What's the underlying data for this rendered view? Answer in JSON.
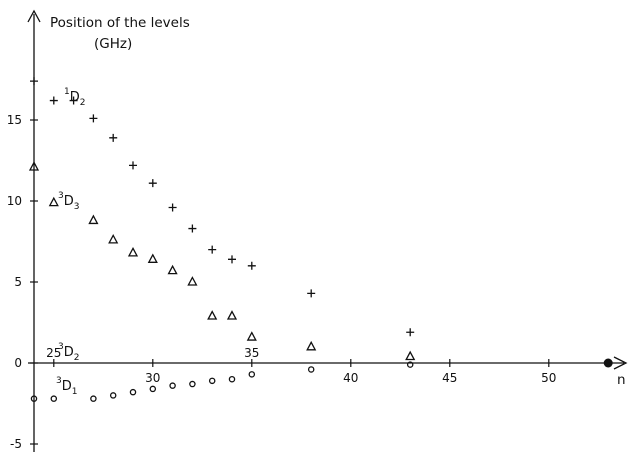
{
  "chart_data": {
    "type": "scatter",
    "title": "Position of the levels",
    "ylabel": "(GHz)",
    "xlabel": "n",
    "xlim": [
      24,
      54
    ],
    "ylim": [
      -6.5,
      19
    ],
    "x_ticks": [
      25,
      30,
      35,
      40,
      45,
      50
    ],
    "y_ticks": [
      -5,
      0,
      5,
      10,
      15
    ],
    "x_axis_end_marker": 53,
    "series": [
      {
        "label_pre": "1",
        "label_main": "D",
        "label_post": "2",
        "marker": "plus",
        "points": [
          [
            24,
            17.4
          ],
          [
            25,
            16.2
          ],
          [
            26,
            16.2
          ],
          [
            27,
            15.1
          ],
          [
            28,
            13.9
          ],
          [
            29,
            12.2
          ],
          [
            30,
            11.1
          ],
          [
            31,
            9.6
          ],
          [
            32,
            8.3
          ],
          [
            33,
            7.0
          ],
          [
            34,
            6.4
          ],
          [
            35,
            6.0
          ],
          [
            38,
            4.3
          ],
          [
            43,
            1.9
          ]
        ]
      },
      {
        "label_pre": "3",
        "label_main": "D",
        "label_post": "3",
        "marker": "triangle",
        "points": [
          [
            24,
            12.1
          ],
          [
            25,
            9.9
          ],
          [
            27,
            8.8
          ],
          [
            28,
            7.6
          ],
          [
            29,
            6.8
          ],
          [
            30,
            6.4
          ],
          [
            31,
            5.7
          ],
          [
            32,
            5.0
          ],
          [
            33,
            2.9
          ],
          [
            34,
            2.9
          ],
          [
            35,
            1.6
          ],
          [
            38,
            1.0
          ],
          [
            43,
            0.4
          ]
        ]
      },
      {
        "label_pre": "3",
        "label_main": "D",
        "label_post": "2",
        "marker": "none",
        "points": []
      },
      {
        "label_pre": "3",
        "label_main": "D",
        "label_post": "1",
        "marker": "circle",
        "points": [
          [
            24,
            -2.2
          ],
          [
            25,
            -2.2
          ],
          [
            27,
            -2.2
          ],
          [
            28,
            -2.0
          ],
          [
            29,
            -1.8
          ],
          [
            30,
            -1.6
          ],
          [
            31,
            -1.4
          ],
          [
            32,
            -1.3
          ],
          [
            33,
            -1.1
          ],
          [
            34,
            -1.0
          ],
          [
            35,
            -0.7
          ],
          [
            38,
            -0.4
          ],
          [
            43,
            -0.1
          ]
        ]
      }
    ]
  }
}
